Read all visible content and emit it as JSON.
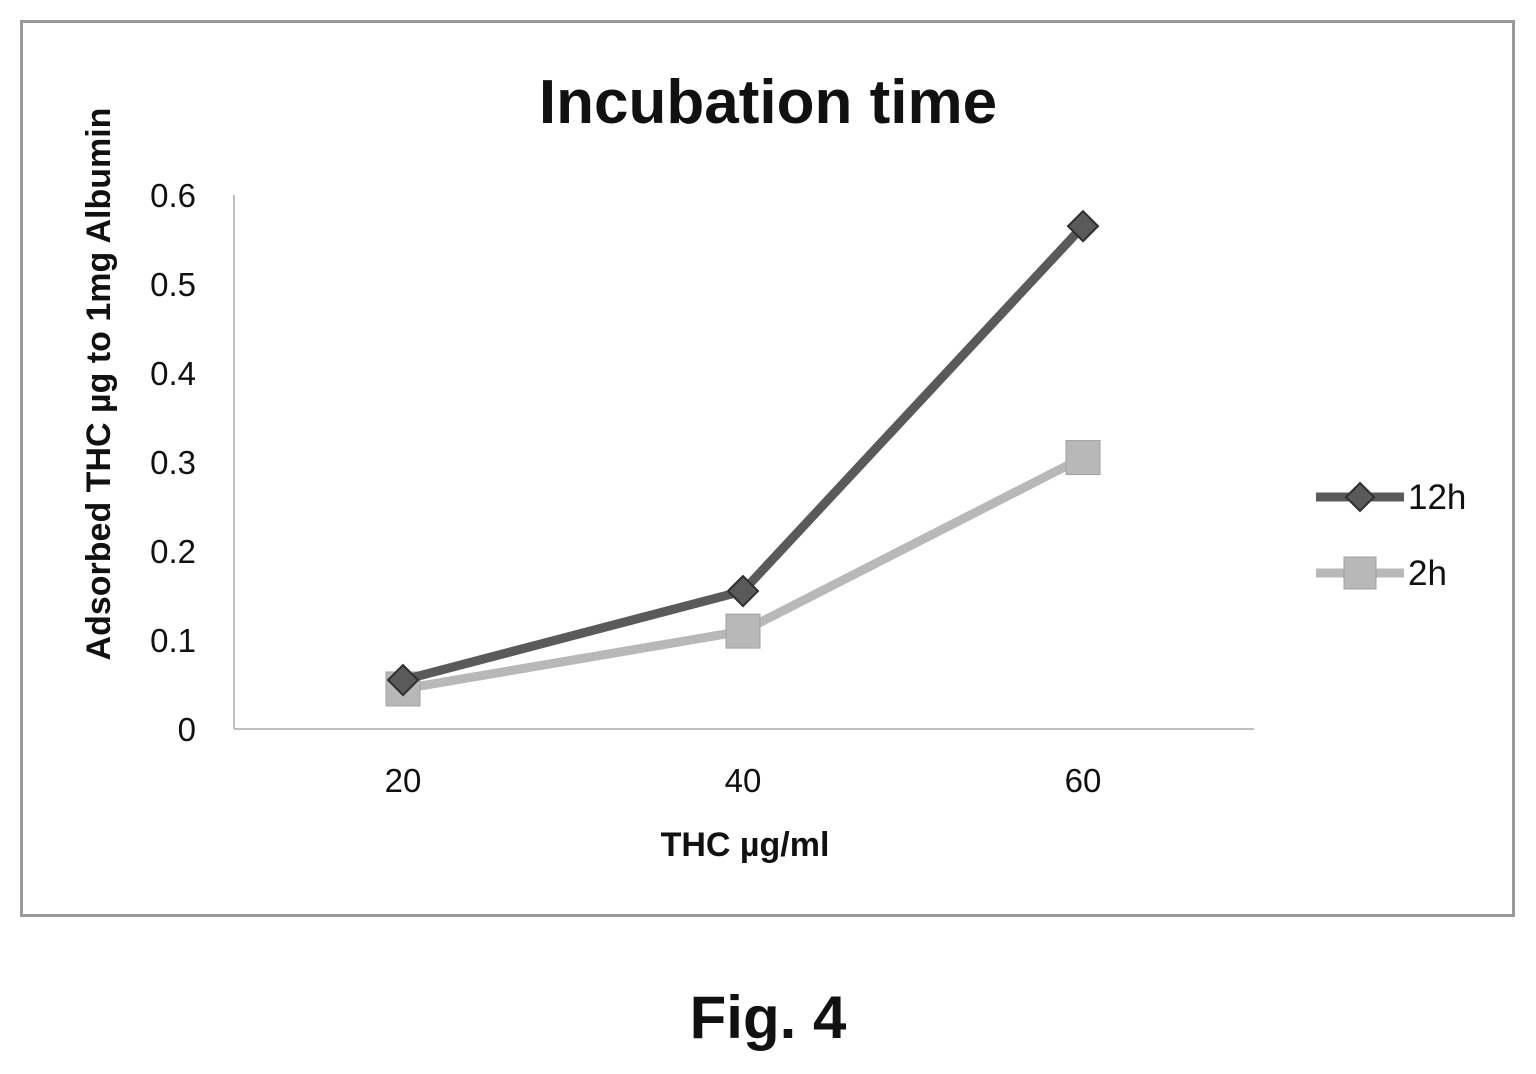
{
  "figure": {
    "caption": "Fig. 4"
  },
  "chart_data": {
    "type": "line",
    "title": "Incubation time",
    "xlabel": "THC µg/ml",
    "ylabel": "Adsorbed THC µg to 1mg Albumin",
    "categories": [
      "20",
      "40",
      "60"
    ],
    "ylim": [
      0,
      0.6
    ],
    "yticks": [
      "0",
      "0.1",
      "0.2",
      "0.3",
      "0.4",
      "0.5",
      "0.6"
    ],
    "grid": false,
    "legend_position": "right",
    "series": [
      {
        "name": "12h",
        "values": [
          0.055,
          0.155,
          0.565
        ],
        "color": "#5a5a5a",
        "marker": "diamond"
      },
      {
        "name": "2h",
        "values": [
          0.045,
          0.11,
          0.305
        ],
        "color": "#b8b8b8",
        "marker": "square"
      }
    ]
  }
}
